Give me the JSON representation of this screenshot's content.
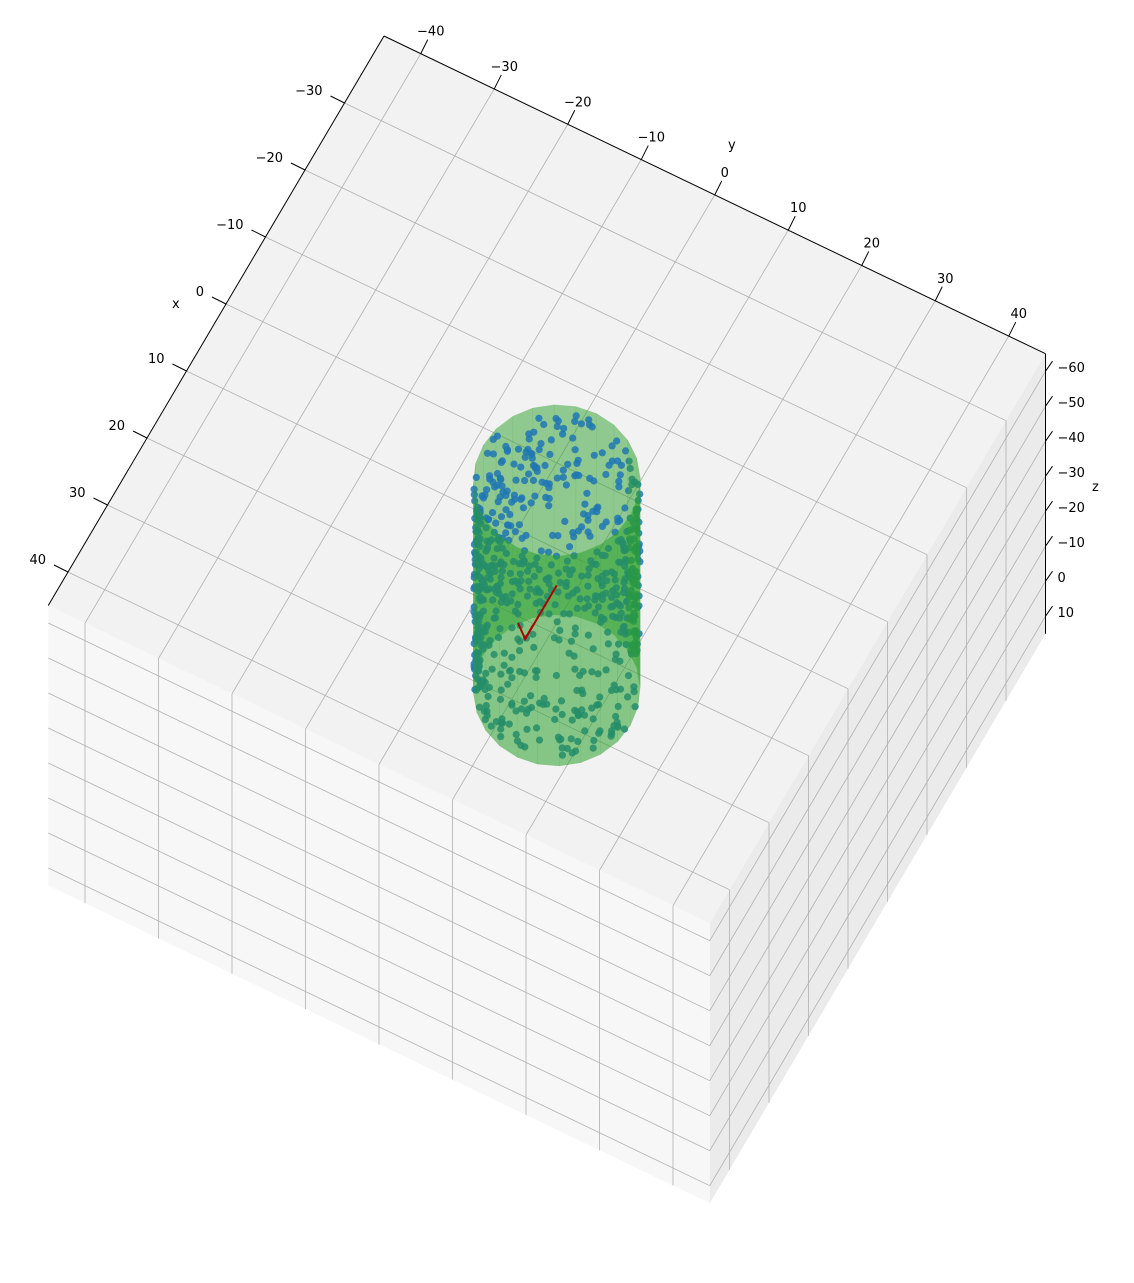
{
  "chart_data": {
    "type": "scatter",
    "projection": "3d",
    "title": "",
    "xlabel": "x",
    "ylabel": "y",
    "zlabel": "z",
    "x_ticks": [
      "−30",
      "−20",
      "−10",
      "0",
      "10",
      "20",
      "30",
      "40"
    ],
    "y_ticks": [
      "−40",
      "−30",
      "−20",
      "−10",
      "0",
      "10",
      "20",
      "30",
      "40"
    ],
    "z_ticks": [
      "−60",
      "−50",
      "−40",
      "−30",
      "−20",
      "−10",
      "0",
      "10"
    ],
    "xlim": [
      -40,
      45
    ],
    "ylim": [
      -45,
      45
    ],
    "zlim": [
      -65,
      15
    ],
    "grid": true,
    "series": [
      {
        "kind": "scatter",
        "color": "#1f77b4",
        "description_values": "points distributed on a cylindrical surface, radius about 9, height from about -5 to 60"
      },
      {
        "kind": "surface",
        "color": "#2ca02c",
        "opacity": 0.6
      },
      {
        "kind": "arrow",
        "color": "#b00000"
      }
    ],
    "cylinder": {
      "center_x": 0,
      "center_y": 0,
      "radius": 10,
      "z_min": 0,
      "z_max": 60
    },
    "arrow": {
      "from": [
        0,
        0,
        0
      ],
      "to": [
        2,
        0,
        0
      ]
    }
  }
}
